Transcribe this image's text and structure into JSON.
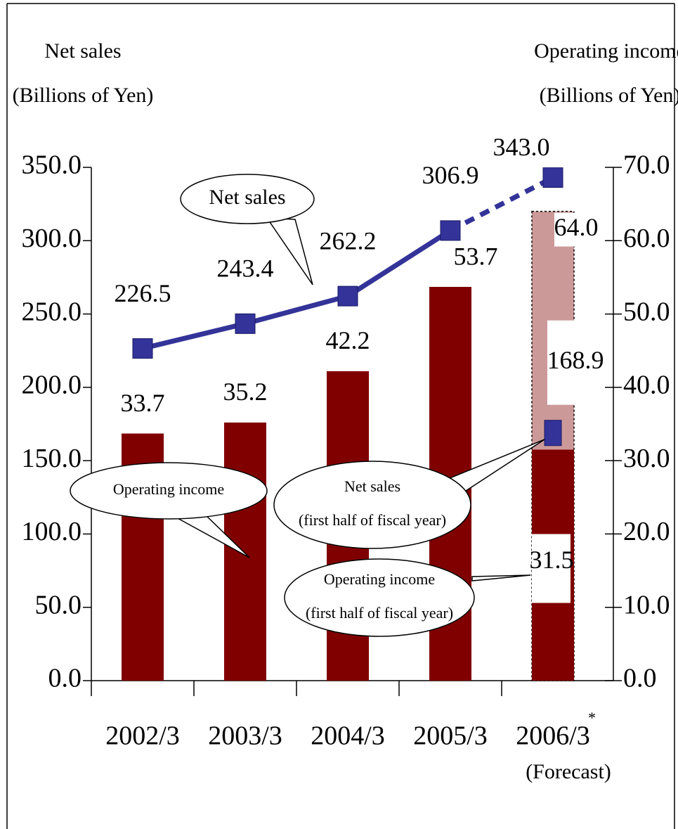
{
  "chart_data": {
    "type": "bar_line",
    "y_label": [
      "Net sales",
      "(Billions of Yen)"
    ],
    "y2_label": [
      "Operating income",
      "(Billions of Yen)"
    ],
    "categories": [
      "2002/3",
      "2003/3",
      "2004/3",
      "2005/3",
      "2006/3"
    ],
    "category_note": "*",
    "category_subtitle": "(Forecast)",
    "ylim": [
      0,
      350
    ],
    "yticks": [
      {
        "value": 0,
        "label": "0.0"
      },
      {
        "value": 50,
        "label": "50.0"
      },
      {
        "value": 100,
        "label": "100.0"
      },
      {
        "value": 150,
        "label": "150.0"
      },
      {
        "value": 200,
        "label": "200.0"
      },
      {
        "value": 250,
        "label": "250.0"
      },
      {
        "value": 300,
        "label": "300.0"
      },
      {
        "value": 350,
        "label": "350.0"
      }
    ],
    "y2lim": [
      0,
      70
    ],
    "y2ticks": [
      {
        "value": 0,
        "label": "0.0"
      },
      {
        "value": 10,
        "label": "10.0"
      },
      {
        "value": 20,
        "label": "20.0"
      },
      {
        "value": 30,
        "label": "30.0"
      },
      {
        "value": 40,
        "label": "40.0"
      },
      {
        "value": 50,
        "label": "50.0"
      },
      {
        "value": 60,
        "label": "60.0"
      },
      {
        "value": 70,
        "label": "70.0"
      }
    ],
    "series": [
      {
        "name": [
          "Operating income"
        ],
        "type": "bar",
        "axis": "y2",
        "colors": [
          "#800000",
          "#800000",
          "#800000",
          "#800000",
          "#cc9999"
        ],
        "values": [
          33.7,
          35.2,
          42.2,
          53.7,
          64.0
        ],
        "value_labels": [
          "33.7",
          "35.2",
          "42.2",
          "53.7",
          "64.0"
        ]
      },
      {
        "name": [
          "Operating income",
          "(first half of fiscal year)"
        ],
        "type": "bar",
        "axis": "y2",
        "color": "#800000",
        "values": [
          null,
          null,
          null,
          null,
          31.5
        ]
      },
      {
        "name": [
          "Net sales"
        ],
        "type": "line",
        "color": "#333399",
        "dashed_from": 3,
        "values": [
          226.5,
          243.4,
          262.2,
          306.9,
          343.0
        ],
        "value_labels": [
          "226.5",
          "243.4",
          "262.2",
          "306.9",
          "343.0"
        ]
      },
      {
        "name": [
          "Net sales",
          "(first half of fiscal year)"
        ],
        "type": "marker",
        "color": "#333399",
        "values": [
          null,
          null,
          null,
          null,
          168.9
        ]
      }
    ]
  }
}
